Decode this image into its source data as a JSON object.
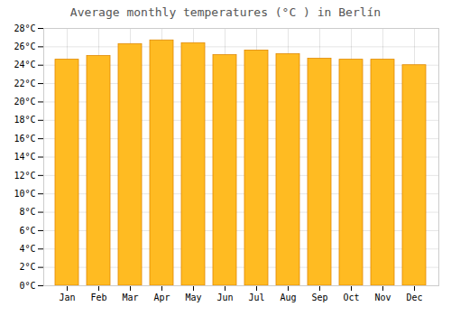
{
  "chart_data": {
    "type": "bar",
    "title": "Average monthly temperatures (°C ) in Berlín",
    "categories": [
      "Jan",
      "Feb",
      "Mar",
      "Apr",
      "May",
      "Jun",
      "Jul",
      "Aug",
      "Sep",
      "Oct",
      "Nov",
      "Dec"
    ],
    "values": [
      24.6,
      25.0,
      26.3,
      26.7,
      26.4,
      25.1,
      25.6,
      25.2,
      24.7,
      24.6,
      24.6,
      24.0
    ],
    "color": "#FFBB22",
    "ylim": [
      0,
      28
    ],
    "yticks": [
      {
        "value": 0,
        "label": "0°C"
      },
      {
        "value": 2,
        "label": "2°C"
      },
      {
        "value": 4,
        "label": "4°C"
      },
      {
        "value": 6,
        "label": "6°C"
      },
      {
        "value": 8,
        "label": "8°C"
      },
      {
        "value": 10,
        "label": "10°C"
      },
      {
        "value": 12,
        "label": "12°C"
      },
      {
        "value": 14,
        "label": "14°C"
      },
      {
        "value": 16,
        "label": "16°C"
      },
      {
        "value": 18,
        "label": "18°C"
      },
      {
        "value": 20,
        "label": "20°C"
      },
      {
        "value": 22,
        "label": "22°C"
      },
      {
        "value": 24,
        "label": "24°C"
      },
      {
        "value": 26,
        "label": "26°C"
      },
      {
        "value": 28,
        "label": "28°C"
      }
    ],
    "grid": true
  }
}
